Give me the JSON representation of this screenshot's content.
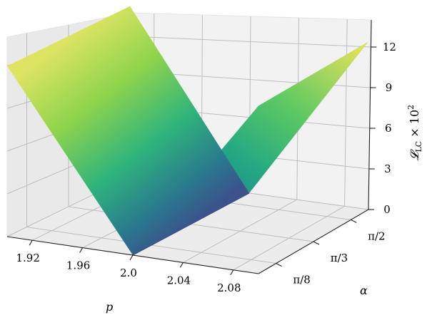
{
  "chart_data": {
    "type": "surface3d",
    "title": "",
    "xlabel": "p",
    "ylabel": "α",
    "zlabel": "𝓛_LC × 10²",
    "zlabel_parts": {
      "main": "𝓛",
      "sub": "LC",
      "rest": " × 10",
      "sup": "2"
    },
    "x_ticks": [
      1.92,
      1.96,
      2.0,
      2.04,
      2.08
    ],
    "x_tick_labels": [
      "1.92",
      "1.96",
      "2.0",
      "2.04",
      "2.08"
    ],
    "y_tick_labels": [
      "π/8",
      "π/3",
      "π/2"
    ],
    "z_ticks": [
      0,
      3,
      6,
      9,
      12
    ],
    "z_tick_labels": [
      "0",
      "3",
      "6",
      "9",
      "12"
    ],
    "xlim": [
      1.9,
      2.1
    ],
    "ylim": [
      0.3927,
      1.5708
    ],
    "zlim": [
      0,
      14
    ],
    "surface": {
      "minimum_p": 2.0,
      "value_at_p_1_9": 12.6,
      "value_at_p_2_1": 12.4,
      "colormap": "viridis"
    },
    "grid": true
  }
}
